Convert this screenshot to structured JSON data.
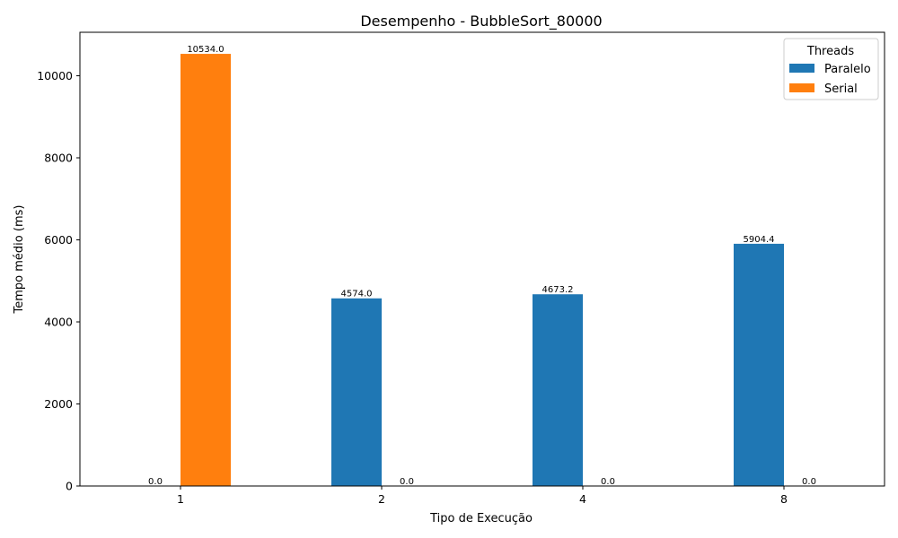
{
  "chart_data": {
    "type": "bar",
    "title": "Desempenho - BubbleSort_80000",
    "xlabel": "Tipo de Execução",
    "ylabel": "Tempo médio (ms)",
    "categories": [
      "1",
      "2",
      "4",
      "8"
    ],
    "series": [
      {
        "name": "Paralelo",
        "color": "#1f77b4",
        "values": [
          0.0,
          4574.0,
          4673.2,
          5904.4
        ],
        "labels": [
          "0.0",
          "4574.0",
          "4673.2",
          "5904.4"
        ]
      },
      {
        "name": "Serial",
        "color": "#ff7f0e",
        "values": [
          10534.0,
          0.0,
          0.0,
          0.0
        ],
        "labels": [
          "10534.0",
          "0.0",
          "0.0",
          "0.0"
        ]
      }
    ],
    "ylim": [
      0,
      11060
    ],
    "yticks": [
      0,
      2000,
      4000,
      6000,
      8000,
      10000
    ],
    "yticklabels": [
      "0",
      "2000",
      "4000",
      "6000",
      "8000",
      "10000"
    ],
    "legend": {
      "title": "Threads",
      "position": "upper right"
    },
    "grid": false
  }
}
